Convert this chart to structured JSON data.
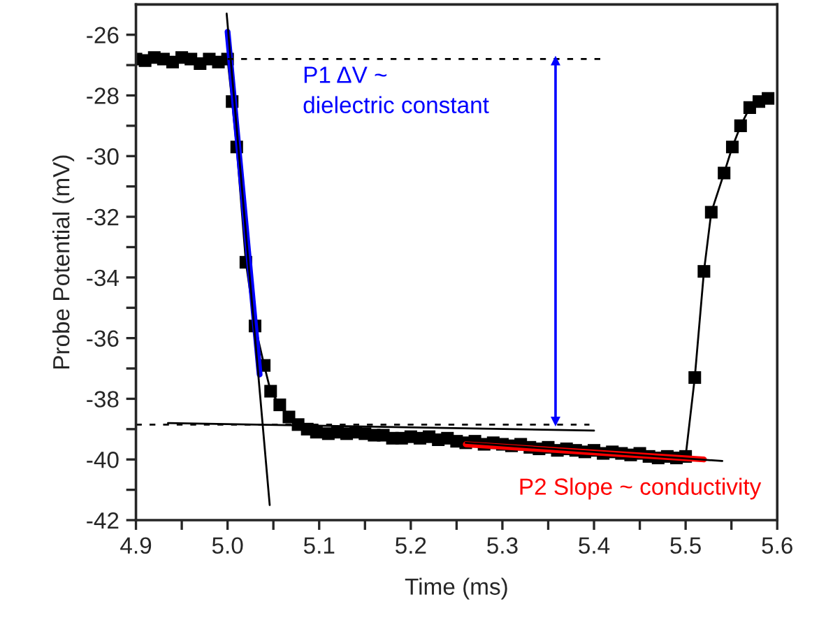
{
  "chart_data": {
    "type": "line",
    "xlabel": "Time (ms)",
    "ylabel": "Probe Potential (mV)",
    "xlim": [
      4.9,
      5.6
    ],
    "ylim": [
      -42,
      -25
    ],
    "xticks": [
      4.9,
      {
        "value": 4.95,
        "label": null
      },
      {
        "value": 5.0,
        "label": "5.0"
      },
      {
        "value": 5.05,
        "label": null
      },
      5.1,
      {
        "value": 5.15,
        "label": null
      },
      5.2,
      {
        "value": 5.25,
        "label": null
      },
      5.3,
      {
        "value": 5.35,
        "label": null
      },
      5.4,
      {
        "value": 5.45,
        "label": null
      },
      5.5,
      {
        "value": 5.55,
        "label": null
      },
      5.6
    ],
    "yticks": [
      -42,
      {
        "value": -41,
        "label": null
      },
      -40,
      {
        "value": -39,
        "label": null
      },
      -38,
      {
        "value": -37,
        "label": null
      },
      -36,
      {
        "value": -35,
        "label": null
      },
      -34,
      {
        "value": -33,
        "label": null
      },
      -32,
      {
        "value": -31,
        "label": null
      },
      -30,
      {
        "value": -29,
        "label": null
      },
      -28,
      {
        "value": -27,
        "label": null
      },
      -26
    ],
    "grid": false,
    "legend": false,
    "annotations": [
      "P1 ΔV ~\ndielectric constant",
      "P2 Slope ~ conductivity"
    ],
    "series": [
      {
        "color": "#000000",
        "marker": "square",
        "line_style": "solid",
        "x": [
          4.9,
          4.91,
          4.92,
          4.93,
          4.94,
          4.95,
          4.96,
          4.97,
          4.98,
          4.99,
          5.0,
          5.005,
          5.01,
          5.02,
          5.03,
          5.04,
          5.047,
          5.057,
          5.067,
          5.077,
          5.087,
          5.097,
          5.11,
          5.12,
          5.13,
          5.14,
          5.15,
          5.16,
          5.17,
          5.18,
          5.19,
          5.2,
          5.21,
          5.22,
          5.23,
          5.24,
          5.25,
          5.26,
          5.27,
          5.28,
          5.29,
          5.3,
          5.31,
          5.32,
          5.33,
          5.34,
          5.35,
          5.36,
          5.37,
          5.38,
          5.39,
          5.4,
          5.41,
          5.42,
          5.43,
          5.44,
          5.45,
          5.46,
          5.47,
          5.48,
          5.49,
          5.5,
          5.51,
          5.52,
          5.528,
          5.542,
          5.551,
          5.56,
          5.57,
          5.58,
          5.59
        ],
        "values": [
          -26.8,
          -26.85,
          -26.75,
          -26.8,
          -26.9,
          -26.75,
          -26.8,
          -26.95,
          -26.8,
          -26.9,
          -26.8,
          -28.2,
          -29.7,
          -33.5,
          -35.6,
          -36.9,
          -37.75,
          -38.2,
          -38.6,
          -38.85,
          -39.0,
          -39.1,
          -39.15,
          -39.1,
          -39.15,
          -39.1,
          -39.15,
          -39.2,
          -39.2,
          -39.3,
          -39.3,
          -39.25,
          -39.3,
          -39.25,
          -39.35,
          -39.3,
          -39.4,
          -39.45,
          -39.4,
          -39.5,
          -39.45,
          -39.5,
          -39.55,
          -39.5,
          -39.6,
          -39.65,
          -39.6,
          -39.7,
          -39.65,
          -39.7,
          -39.75,
          -39.7,
          -39.8,
          -39.75,
          -39.8,
          -39.85,
          -39.8,
          -39.9,
          -39.95,
          -39.9,
          -39.95,
          -39.9,
          -37.3,
          -33.8,
          -31.85,
          -30.56,
          -29.7,
          -29.0,
          -28.4,
          -28.2,
          -28.1
        ]
      },
      {
        "color": "#0000ff",
        "marker": "none",
        "line_style": "solid",
        "x": [
          5.0,
          5.035
        ],
        "values": [
          -25.9,
          -37.2
        ]
      },
      {
        "color": "#ff0000",
        "marker": "none",
        "line_style": "solid",
        "x": [
          5.26,
          5.52
        ],
        "values": [
          -39.5,
          -40.0
        ]
      },
      {
        "color": "#000000",
        "marker": "none",
        "line_style": "solid",
        "x": [
          4.999,
          5.046
        ],
        "values": [
          -25.3,
          -41.5
        ]
      },
      {
        "color": "#000000",
        "marker": "none",
        "line_style": "solid",
        "x": [
          4.935,
          5.4
        ],
        "values": [
          -38.8,
          -39.05
        ]
      },
      {
        "color": "#000000",
        "marker": "none",
        "line_style": "solid",
        "x": [
          5.26,
          5.54
        ],
        "values": [
          -39.45,
          -40.05
        ]
      },
      {
        "color": "#000000",
        "marker": "none",
        "line_style": "dotted",
        "x": [
          5.0,
          5.41
        ],
        "values": [
          -26.8,
          -26.8
        ]
      },
      {
        "color": "#000000",
        "marker": "none",
        "line_style": "dotted",
        "x": [
          4.9,
          5.395
        ],
        "values": [
          -38.85,
          -38.85
        ]
      },
      {
        "color": "#0000ff",
        "marker": "triangle",
        "line_style": "solid",
        "x": [
          5.358,
          5.358
        ],
        "values": [
          -26.85,
          -38.75
        ]
      }
    ]
  }
}
